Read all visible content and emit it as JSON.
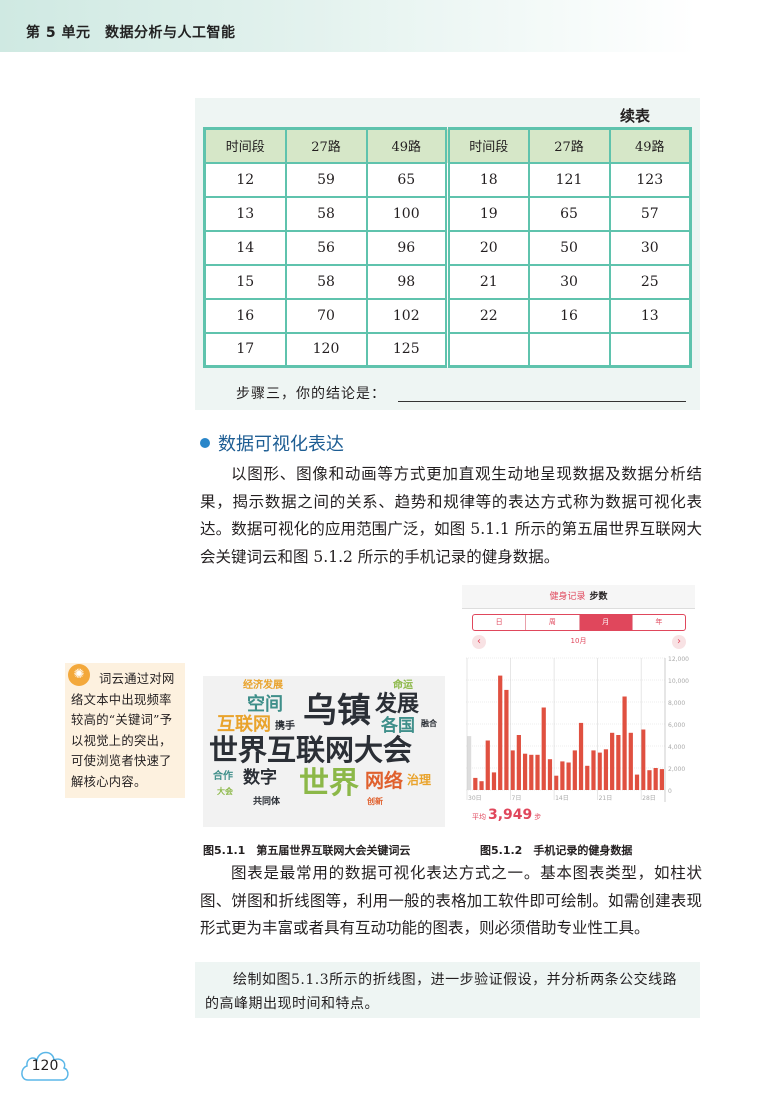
{
  "header": {
    "title": "第 5 单元　数据分析与人工智能"
  },
  "table": {
    "continued_label": "续表",
    "headers": [
      "时间段",
      "27路",
      "49路",
      "时间段",
      "27路",
      "49路"
    ],
    "rows": [
      [
        "12",
        "59",
        "65",
        "18",
        "121",
        "123"
      ],
      [
        "13",
        "58",
        "100",
        "19",
        "65",
        "57"
      ],
      [
        "14",
        "56",
        "96",
        "20",
        "50",
        "30"
      ],
      [
        "15",
        "58",
        "98",
        "21",
        "30",
        "25"
      ],
      [
        "16",
        "70",
        "102",
        "22",
        "16",
        "13"
      ],
      [
        "17",
        "120",
        "125",
        "",
        "",
        ""
      ]
    ],
    "conclusion_prompt": "步骤三，你的结论是："
  },
  "section": {
    "title": "数据可视化表达"
  },
  "paragraph1": "以图形、图像和动画等方式更加直观生动地呈现数据及数据分析结果，揭示数据之间的关系、趋势和规律等的表达方式称为数据可视化表达。数据可视化的应用范围广泛，如图 5.1.1 所示的第五届世界互联网大会关键词云和图 5.1.2 所示的手机记录的健身数据。",
  "tip": {
    "icon": "lightbulb-icon",
    "text": "词云通过对网络文本中出现频率较高的“关键词”予以视觉上的突出，可使浏览者快速了解核心内容。"
  },
  "word_cloud": {
    "words": [
      {
        "text": "世界互联网大会",
        "color": "#2b2f36"
      },
      {
        "text": "乌镇",
        "color": "#2b2f36"
      },
      {
        "text": "世界",
        "color": "#8cb848"
      },
      {
        "text": "发展",
        "color": "#2b2f36"
      },
      {
        "text": "互联网",
        "color": "#e9a32c"
      },
      {
        "text": "空间",
        "color": "#3f8f8a"
      },
      {
        "text": "各国",
        "color": "#3f8f8a"
      },
      {
        "text": "数字",
        "color": "#2b2f36"
      },
      {
        "text": "网络",
        "color": "#e0612e"
      },
      {
        "text": "治理",
        "color": "#e9a32c"
      },
      {
        "text": "经济发展",
        "color": "#e9a32c"
      },
      {
        "text": "命运",
        "color": "#8cb848"
      },
      {
        "text": "携手",
        "color": "#2b2f36"
      },
      {
        "text": "共同体",
        "color": "#2b2f36"
      },
      {
        "text": "合作",
        "color": "#3f8f8a"
      },
      {
        "text": "融合",
        "color": "#2b2f36"
      },
      {
        "text": "大会",
        "color": "#8cb848"
      },
      {
        "text": "创新",
        "color": "#e0612e"
      }
    ]
  },
  "phone": {
    "title_app": "健身记录",
    "title_metric": "步数",
    "segments": [
      "日",
      "周",
      "月",
      "年"
    ],
    "active_segment": "月",
    "month": "10月",
    "prev_icon": "chevron-left-icon",
    "next_icon": "chevron-right-icon",
    "average_label": "平均",
    "average_value": "3,949",
    "average_unit": "步",
    "accent": "#e0475c"
  },
  "chart_data": {
    "type": "bar",
    "x_tick_labels": [
      "30日",
      "7日",
      "14日",
      "21日",
      "28日"
    ],
    "y_tick_labels": [
      "0",
      "2,000",
      "4,000",
      "6,000",
      "8,000",
      "10,000",
      "12,000"
    ],
    "ylim": [
      0,
      12000
    ],
    "previous_month_value": 4900,
    "values": [
      1100,
      800,
      4500,
      1600,
      10400,
      9100,
      3600,
      5000,
      3300,
      3200,
      3200,
      7500,
      2800,
      1300,
      2600,
      2500,
      3600,
      6100,
      2200,
      3600,
      3400,
      3700,
      5200,
      5000,
      8500,
      5200,
      1400,
      5500,
      1800,
      2000,
      1900
    ],
    "bar_color": "#e05040",
    "grid": true
  },
  "captions": {
    "fig1": "图5.1.1　第五届世界互联网大会关键词云",
    "fig2": "图5.1.2　手机记录的健身数据"
  },
  "paragraph2": "图表是最常用的数据可视化表达方式之一。基本图表类型，如柱状图、饼图和折线图等，利用一般的表格加工软件即可绘制。如需创建表现形式更为丰富或者具有互动功能的图表，则必须借助专业性工具。",
  "activity": "绘制如图5.1.3所示的折线图，进一步验证假设，并分析两条公交线路的高峰期出现时间和特点。",
  "page_number": "120"
}
